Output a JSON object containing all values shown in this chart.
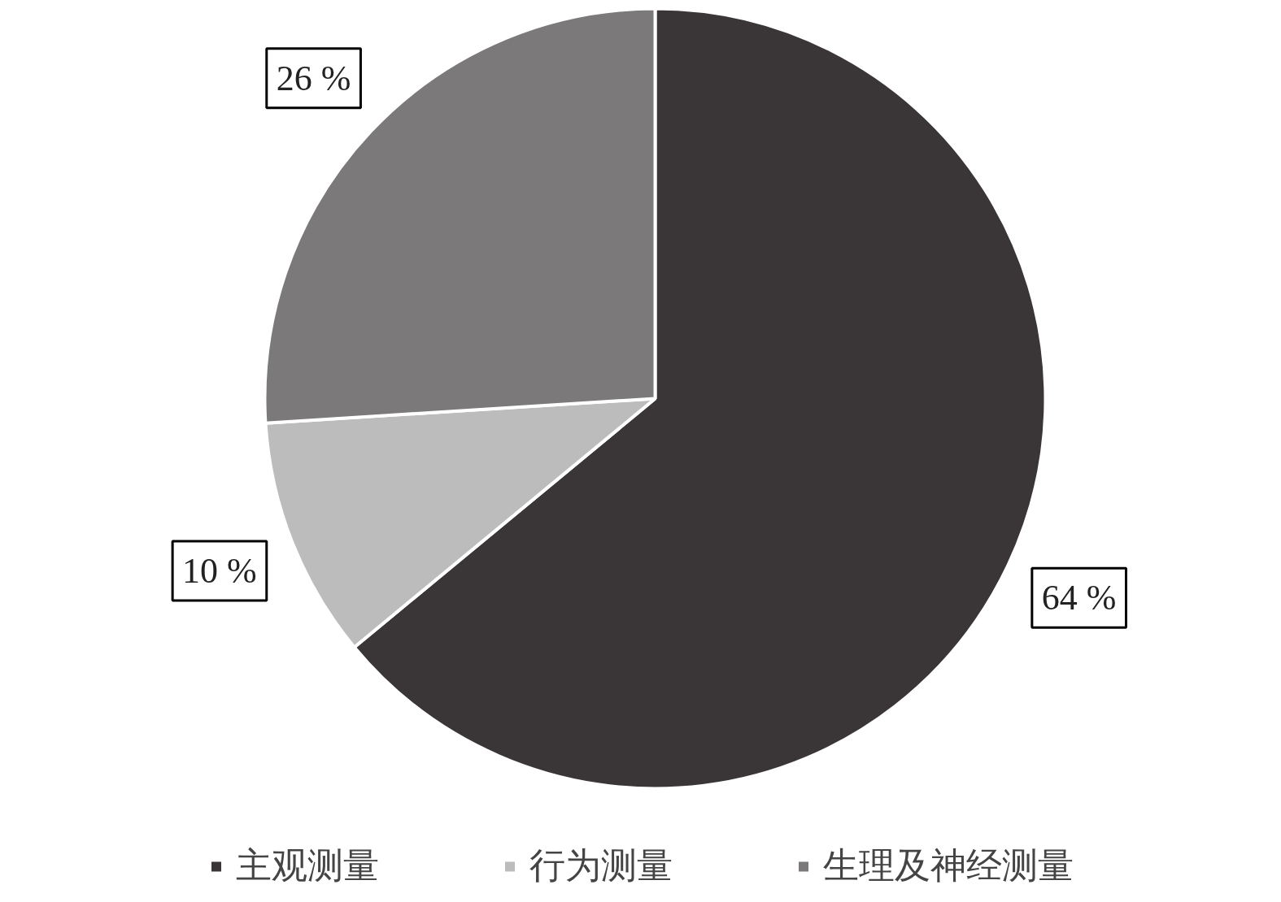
{
  "chart_data": {
    "type": "pie",
    "categories": [
      "主观测量",
      "行为测量",
      "生理及神经测量"
    ],
    "values": [
      64,
      10,
      26
    ],
    "colors": [
      "#3a3637",
      "#bcbcbc",
      "#7b797a"
    ],
    "value_labels": [
      "64 %",
      "10 %",
      "26 %"
    ],
    "legend": "bottom"
  }
}
